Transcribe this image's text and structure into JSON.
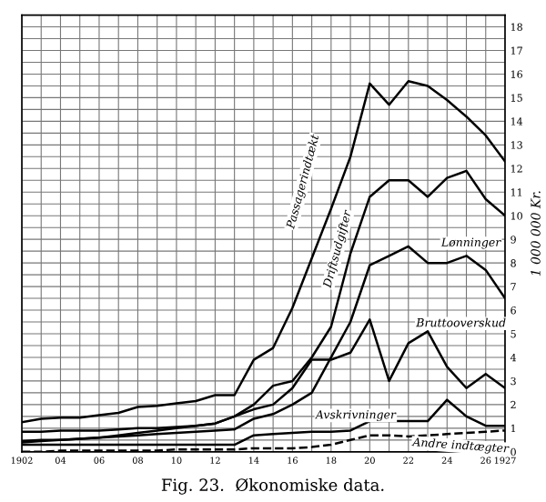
{
  "chart_data": {
    "type": "line",
    "title": "Fig. 23.  Økonomiske data.",
    "ylabel": "1 000 000 Kr.",
    "x": [
      1902,
      1903,
      1904,
      1905,
      1906,
      1907,
      1908,
      1909,
      1910,
      1911,
      1912,
      1913,
      1914,
      1915,
      1916,
      1917,
      1918,
      1919,
      1920,
      1921,
      1922,
      1923,
      1924,
      1925,
      1926,
      1927
    ],
    "series": [
      {
        "name": "Passagerindtækt",
        "color": "#000000",
        "values": [
          1.25,
          1.4,
          1.45,
          1.45,
          1.55,
          1.65,
          1.9,
          1.95,
          2.05,
          2.15,
          2.4,
          2.4,
          3.9,
          4.4,
          6.1,
          8.2,
          10.3,
          12.5,
          15.6,
          14.7,
          15.7,
          15.5,
          14.9,
          14.2,
          13.4,
          12.3
        ]
      },
      {
        "name": "Driftsudgifter",
        "color": "#000000",
        "values": [
          0.85,
          0.85,
          0.9,
          0.9,
          0.9,
          0.95,
          1.0,
          1.0,
          1.05,
          1.1,
          1.2,
          1.5,
          2.0,
          2.8,
          3.0,
          4.0,
          5.3,
          8.4,
          10.8,
          11.5,
          11.5,
          10.8,
          11.6,
          11.9,
          10.7,
          10.0
        ]
      },
      {
        "name": "Lønninger",
        "color": "#000000",
        "values": [
          0.45,
          0.5,
          0.5,
          0.55,
          0.6,
          0.65,
          0.7,
          0.75,
          0.8,
          0.85,
          0.9,
          0.95,
          1.4,
          1.6,
          2.0,
          2.5,
          4.0,
          5.5,
          7.9,
          8.3,
          8.7,
          8.0,
          8.0,
          8.3,
          7.7,
          6.5
        ]
      },
      {
        "name": "Bruttooverskud",
        "color": "#000000",
        "values": [
          0.4,
          0.45,
          0.5,
          0.55,
          0.6,
          0.7,
          0.8,
          0.9,
          1.0,
          1.1,
          1.2,
          1.5,
          1.8,
          2.0,
          2.7,
          3.9,
          3.9,
          4.2,
          5.6,
          3.0,
          4.6,
          5.1,
          3.6,
          2.7,
          3.3,
          2.7
        ]
      },
      {
        "name": "Avskrivninger",
        "color": "#000000",
        "values": [
          0.3,
          0.3,
          0.3,
          0.3,
          0.3,
          0.3,
          0.3,
          0.3,
          0.3,
          0.3,
          0.3,
          0.3,
          0.7,
          0.75,
          0.8,
          0.85,
          0.85,
          0.9,
          1.3,
          1.3,
          1.3,
          1.3,
          2.2,
          1.5,
          1.1,
          1.1
        ]
      },
      {
        "name": "Andre indtægter",
        "color": "#000000",
        "line_style": "dashed",
        "values": [
          0.0,
          0.0,
          0.05,
          0.05,
          0.05,
          0.05,
          0.05,
          0.05,
          0.1,
          0.1,
          0.1,
          0.1,
          0.15,
          0.15,
          0.15,
          0.2,
          0.3,
          0.5,
          0.7,
          0.7,
          0.65,
          0.7,
          0.75,
          0.8,
          0.85,
          0.9
        ]
      }
    ],
    "xlim": [
      1902,
      1927
    ],
    "ylim": [
      0,
      18.5
    ],
    "xticks": [
      {
        "value": 1902,
        "label": "1902"
      },
      {
        "value": 1903,
        "label": null
      },
      {
        "value": 1904,
        "label": "04"
      },
      {
        "value": 1905,
        "label": null
      },
      {
        "value": 1906,
        "label": "06"
      },
      {
        "value": 1907,
        "label": null
      },
      {
        "value": 1908,
        "label": "08"
      },
      {
        "value": 1909,
        "label": null
      },
      {
        "value": 1910,
        "label": "10"
      },
      {
        "value": 1911,
        "label": null
      },
      {
        "value": 1912,
        "label": "12"
      },
      {
        "value": 1913,
        "label": null
      },
      {
        "value": 1914,
        "label": "14"
      },
      {
        "value": 1915,
        "label": null
      },
      {
        "value": 1916,
        "label": "16"
      },
      {
        "value": 1917,
        "label": null
      },
      {
        "value": 1918,
        "label": "18"
      },
      {
        "value": 1919,
        "label": null
      },
      {
        "value": 1920,
        "label": "20"
      },
      {
        "value": 1921,
        "label": null
      },
      {
        "value": 1922,
        "label": "22"
      },
      {
        "value": 1923,
        "label": null
      },
      {
        "value": 1924,
        "label": "24"
      },
      {
        "value": 1925,
        "label": null
      },
      {
        "value": 1926,
        "label": "26"
      },
      {
        "value": 1927,
        "label": "1927"
      }
    ],
    "yticks": [
      0,
      {
        "value": 0.5,
        "label": null
      },
      1,
      {
        "value": 1.5,
        "label": null
      },
      2,
      {
        "value": 2.5,
        "label": null
      },
      3,
      {
        "value": 3.5,
        "label": null
      },
      4,
      {
        "value": 4.5,
        "label": null
      },
      5,
      {
        "value": 5.5,
        "label": null
      },
      6,
      {
        "value": 6.5,
        "label": null
      },
      7,
      {
        "value": 7.5,
        "label": null
      },
      8,
      {
        "value": 8.5,
        "label": null
      },
      9,
      {
        "value": 9.5,
        "label": null
      },
      10,
      {
        "value": 10.5,
        "label": null
      },
      11,
      {
        "value": 11.5,
        "label": null
      },
      12,
      {
        "value": 12.5,
        "label": null
      },
      13,
      {
        "value": 13.5,
        "label": null
      },
      14,
      {
        "value": 14.5,
        "label": null
      },
      15,
      {
        "value": 15.5,
        "label": null
      },
      16,
      {
        "value": 16.5,
        "label": null
      },
      17,
      {
        "value": 17.5,
        "label": null
      },
      18
    ],
    "grid": true,
    "line_style": "solid",
    "marker": "none",
    "legend": false
  }
}
